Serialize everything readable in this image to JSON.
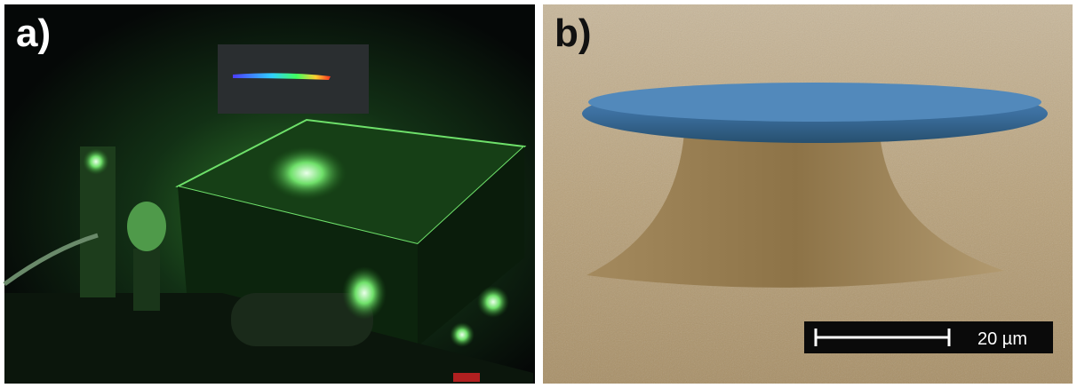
{
  "panels": [
    {
      "label": "a)"
    },
    {
      "label": "b)"
    }
  ],
  "scale_bar": {
    "label": "20 µm"
  }
}
